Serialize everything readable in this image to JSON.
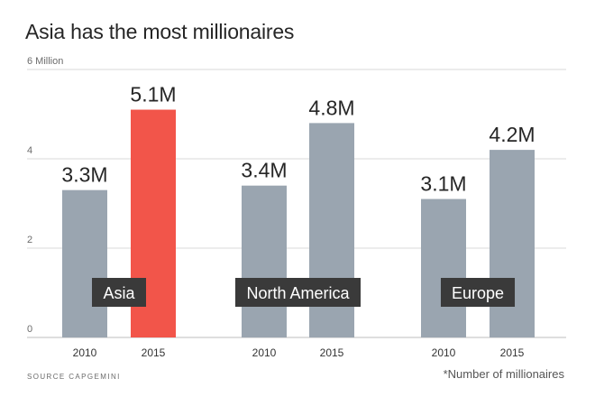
{
  "chart_data": {
    "type": "bar",
    "title": "Asia has the most millionaires",
    "y_axis": {
      "min": 0,
      "max": 6,
      "ticks": [
        {
          "value": 0,
          "label": "0"
        },
        {
          "value": 2,
          "label": "2"
        },
        {
          "value": 4,
          "label": "4"
        },
        {
          "value": 6,
          "label": "6 Million"
        }
      ]
    },
    "groups": [
      {
        "name": "Asia",
        "bars": [
          {
            "year": "2010",
            "value": 3.3,
            "label": "3.3M",
            "color": "#9aa5b0"
          },
          {
            "year": "2015",
            "value": 5.1,
            "label": "5.1M",
            "color": "#f2554a"
          }
        ]
      },
      {
        "name": "North America",
        "bars": [
          {
            "year": "2010",
            "value": 3.4,
            "label": "3.4M",
            "color": "#9aa5b0"
          },
          {
            "year": "2015",
            "value": 4.8,
            "label": "4.8M",
            "color": "#9aa5b0"
          }
        ]
      },
      {
        "name": "Europe",
        "bars": [
          {
            "year": "2010",
            "value": 3.1,
            "label": "3.1M",
            "color": "#9aa5b0"
          },
          {
            "year": "2015",
            "value": 4.2,
            "label": "4.2M",
            "color": "#9aa5b0"
          }
        ]
      }
    ],
    "grid": true,
    "grid_color": "#d9d9d9",
    "group_label_background": "#3a3a3a",
    "group_label_color": "#ffffff"
  },
  "footer": {
    "source": "SOURCE CAPGEMINI",
    "note": "*Number of millionaires"
  }
}
